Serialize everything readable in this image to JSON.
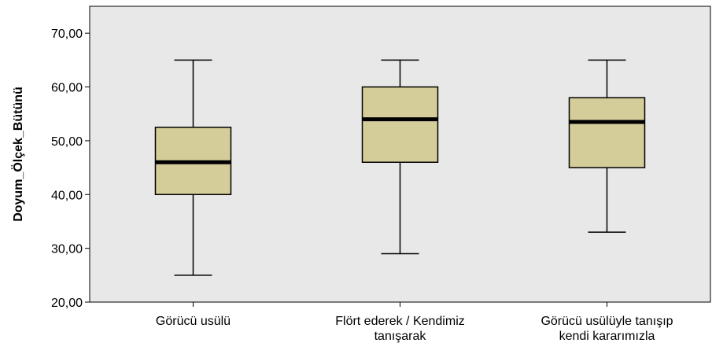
{
  "chart_data": {
    "type": "boxplot",
    "ylabel": "Doyum_Ölçek_Bütünü",
    "ylim": [
      20,
      75
    ],
    "yticks": [
      {
        "value": 20,
        "label": "20,00"
      },
      {
        "value": 30,
        "label": "30,00"
      },
      {
        "value": 40,
        "label": "40,00"
      },
      {
        "value": 50,
        "label": "50,00"
      },
      {
        "value": 60,
        "label": "60,00"
      },
      {
        "value": 70,
        "label": "70,00"
      }
    ],
    "categories": [
      {
        "lines": [
          "Görücü usülü"
        ]
      },
      {
        "lines": [
          "Flört ederek / Kendimiz",
          "tanışarak"
        ]
      },
      {
        "lines": [
          "Görücü usülüyle tanışıp",
          "kendi kararımızla"
        ]
      }
    ],
    "boxes": [
      {
        "min": 25,
        "q1": 40,
        "median": 46,
        "q3": 52.5,
        "max": 65
      },
      {
        "min": 29,
        "q1": 46,
        "median": 54,
        "q3": 60,
        "max": 65
      },
      {
        "min": 33,
        "q1": 45,
        "median": 53.5,
        "q3": 58,
        "max": 65
      }
    ],
    "grid": false,
    "colors": {
      "plot_background": "#e8e8e8",
      "box_fill": "#d4cc99",
      "line": "#000000"
    }
  }
}
